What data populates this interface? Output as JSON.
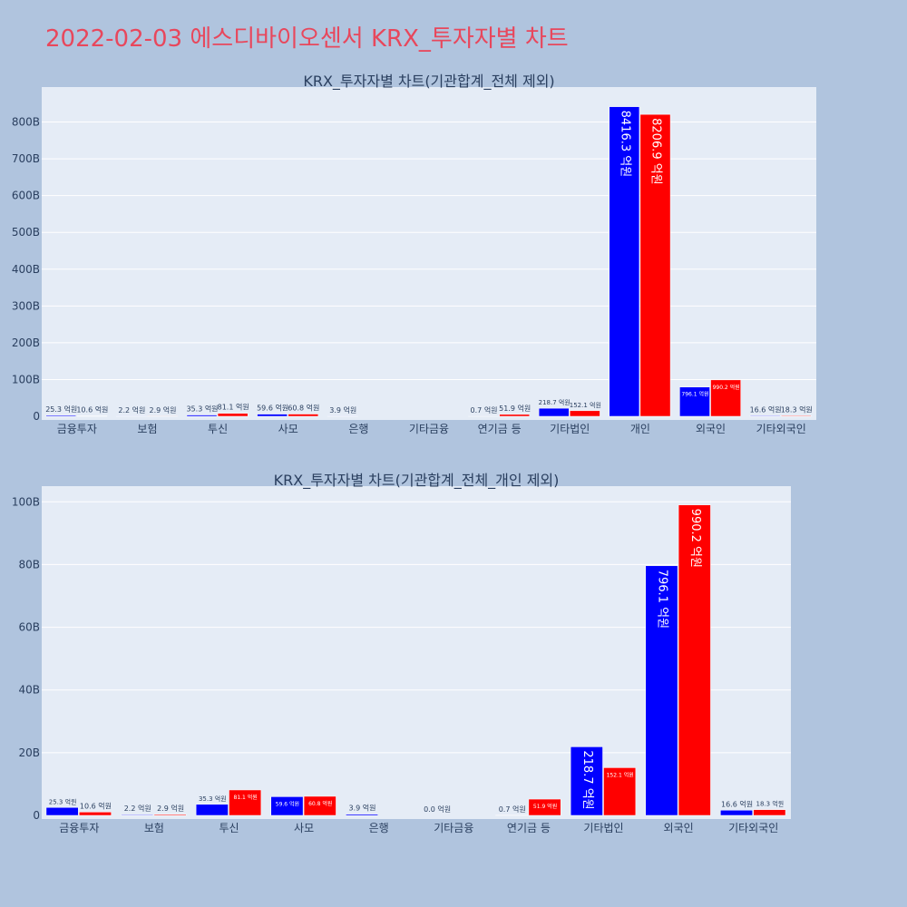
{
  "page": {
    "title": "2022-02-03 에스디바이오센서 KRX_투자자별 차트"
  },
  "colors": {
    "background": "#b0c4de",
    "plot_bg": "#e5ecf6",
    "title": "#e8475c",
    "series_buy": "#0000ff",
    "series_sell": "#ff0000",
    "text": "#2a3f5f"
  },
  "chart_data": [
    {
      "type": "bar",
      "title": "KRX_투자자별 차트(기관합계_전체 제외)",
      "categories": [
        "금융투자",
        "보험",
        "투신",
        "사모",
        "은행",
        "기타금융",
        "연기금 등",
        "기타법인",
        "개인",
        "외국인",
        "기타외국인"
      ],
      "series": [
        {
          "color": "#0000ff",
          "values": [
            2.53,
            0.22,
            3.53,
            5.96,
            0.39,
            0,
            0.07,
            21.87,
            841.63,
            79.61,
            1.66
          ],
          "labels": [
            "25.3 억원",
            "2.2 억원",
            "35.3 억원",
            "59.6 억원",
            "3.9 억원",
            "",
            "0.7 억원",
            "218.7 억원",
            "8416.3 억원",
            "796.1 억원",
            "16.6 억원"
          ]
        },
        {
          "color": "#ff0000",
          "values": [
            1.06,
            0.29,
            8.11,
            6.08,
            0,
            0,
            5.19,
            15.21,
            820.69,
            99.02,
            1.83
          ],
          "labels": [
            "10.6 억원",
            "2.9 억원",
            "81.1 억원",
            "60.8 억원",
            "",
            "",
            "51.9 억원",
            "152.1 억원",
            "8206.9 억원",
            "990.2 억원",
            "18.3 억원"
          ]
        }
      ],
      "yticks": [
        "0",
        "100B",
        "200B",
        "300B",
        "400B",
        "500B",
        "600B",
        "700B",
        "800B"
      ],
      "ytick_values": [
        0,
        100,
        200,
        300,
        400,
        500,
        600,
        700,
        800
      ],
      "ylim": [
        0,
        895
      ],
      "grid": true
    },
    {
      "type": "bar",
      "title": "KRX_투자자별 차트(기관합계_전체_개인 제외)",
      "categories": [
        "금융투자",
        "보험",
        "투신",
        "사모",
        "은행",
        "기타금융",
        "연기금 등",
        "기타법인",
        "외국인",
        "기타외국인"
      ],
      "series": [
        {
          "color": "#0000ff",
          "values": [
            2.53,
            0.22,
            3.53,
            5.96,
            0.39,
            0,
            0.07,
            21.87,
            79.61,
            1.66
          ],
          "labels": [
            "25.3 억원",
            "2.2 억원",
            "35.3 억원",
            "59.6 억원",
            "3.9 억원",
            "0.0 억원",
            "0.7 억원",
            "218.7 억원",
            "796.1 억원",
            "16.6 억원"
          ]
        },
        {
          "color": "#ff0000",
          "values": [
            1.06,
            0.29,
            8.11,
            6.08,
            0,
            0,
            5.19,
            15.21,
            99.02,
            1.83
          ],
          "labels": [
            "10.6 억원",
            "2.9 억원",
            "81.1 억원",
            "60.8 억원",
            "",
            "",
            "51.9 억원",
            "152.1 억원",
            "990.2 억원",
            "18.3 억원"
          ]
        }
      ],
      "yticks": [
        "0",
        "20B",
        "40B",
        "60B",
        "80B",
        "100B"
      ],
      "ytick_values": [
        0,
        20,
        40,
        60,
        80,
        100
      ],
      "ylim": [
        0,
        105
      ],
      "grid": true
    }
  ]
}
